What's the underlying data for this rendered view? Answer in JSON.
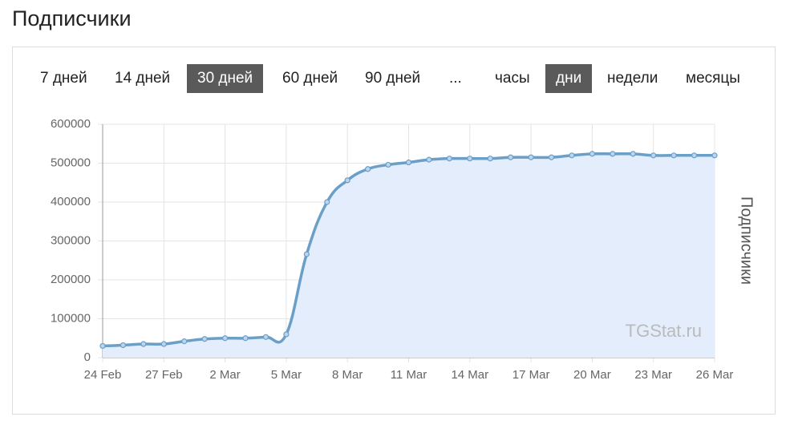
{
  "page_title": "Подписчики",
  "range_buttons": [
    {
      "label": "7 дней",
      "active": false
    },
    {
      "label": "14 дней",
      "active": false
    },
    {
      "label": "30 дней",
      "active": true
    },
    {
      "label": "60 дней",
      "active": false
    },
    {
      "label": "90 дней",
      "active": false
    },
    {
      "label": "...",
      "active": false
    }
  ],
  "unit_buttons": [
    {
      "label": "часы",
      "active": false
    },
    {
      "label": "дни",
      "active": true
    },
    {
      "label": "недели",
      "active": false
    },
    {
      "label": "месяцы",
      "active": false
    }
  ],
  "chart_data": {
    "type": "line",
    "y_label": "Подписчики",
    "watermark": "TGStat.ru",
    "categories": [
      "24 Feb",
      null,
      null,
      "27 Feb",
      null,
      null,
      "2 Mar",
      null,
      null,
      "5 Mar",
      null,
      null,
      "8 Mar",
      null,
      null,
      "11 Mar",
      null,
      null,
      "14 Mar",
      null,
      null,
      "17 Mar",
      null,
      null,
      "20 Mar",
      null,
      null,
      "23 Mar",
      null,
      null,
      "26 Mar"
    ],
    "series": [
      {
        "name": "Подписчики",
        "color": "#6a9fc8",
        "fill": "#e3edfb",
        "values": [
          30000,
          32000,
          35000,
          35000,
          42000,
          48000,
          50000,
          50000,
          53000,
          60000,
          266000,
          400000,
          456000,
          485000,
          496000,
          502000,
          509000,
          512000,
          512000,
          512000,
          515000,
          515000,
          515000,
          520000,
          524000,
          524000,
          524000,
          520000,
          520000,
          520000,
          520000
        ]
      }
    ],
    "ylim": [
      0,
      600000
    ],
    "yticks": [
      0,
      100000,
      200000,
      300000,
      400000,
      500000,
      600000
    ],
    "grid": true
  }
}
